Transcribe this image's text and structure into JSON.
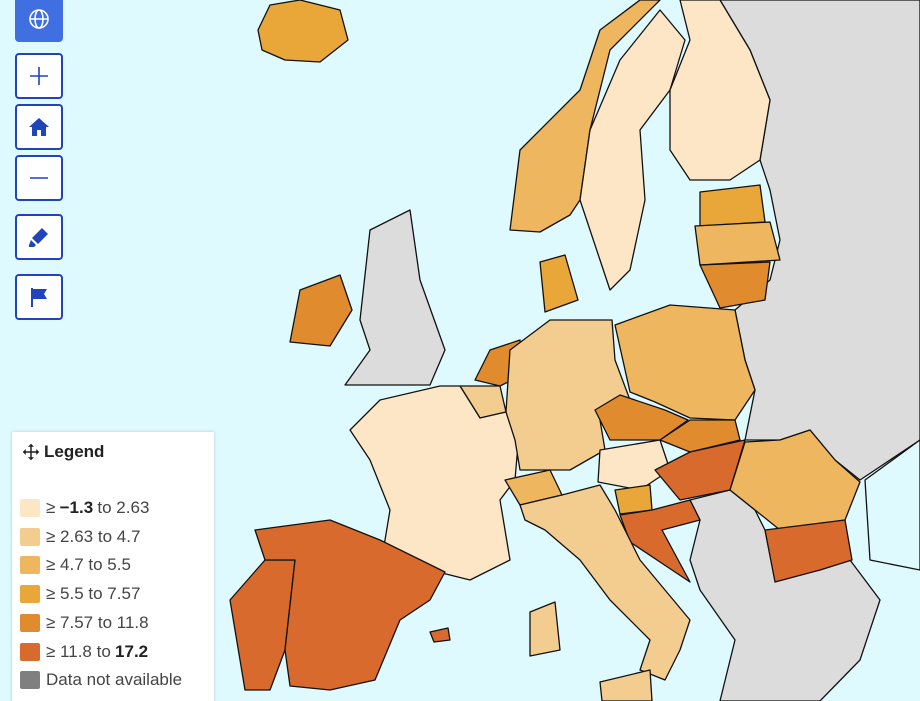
{
  "legend": {
    "title": "Legend",
    "items": [
      {
        "color": "#fde6c6",
        "parts": [
          "≥",
          "−1.3",
          "to 2.63"
        ],
        "bold": [
          1
        ]
      },
      {
        "color": "#f3cd90",
        "parts": [
          "≥ 2.63 to 4.7"
        ]
      },
      {
        "color": "#eeb65e",
        "parts": [
          "≥ 4.7 to 5.5"
        ]
      },
      {
        "color": "#e9a73a",
        "parts": [
          "≥ 5.5 to 7.57"
        ]
      },
      {
        "color": "#e08b2d",
        "parts": [
          "≥ 7.57 to 11.8"
        ]
      },
      {
        "color": "#d96a2e",
        "parts": [
          "≥ 11.8 to",
          "17.2"
        ],
        "bold": [
          1
        ]
      },
      {
        "color": "#7f7f7f",
        "parts": [
          "Data not available"
        ]
      }
    ]
  }
}
